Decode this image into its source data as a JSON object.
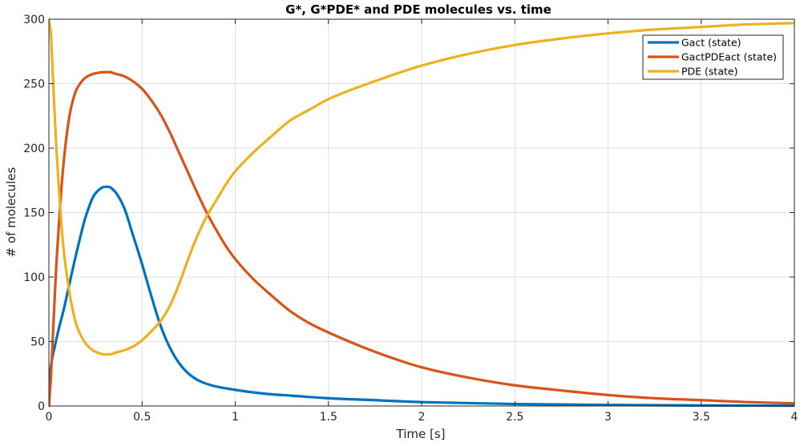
{
  "chart_data": {
    "type": "line",
    "title": "G*, G*PDE* and PDE molecules vs. time",
    "xlabel": "Time [s]",
    "ylabel": "# of molecules",
    "xlim": [
      0,
      4
    ],
    "ylim": [
      0,
      300
    ],
    "xticks": [
      0,
      0.5,
      1,
      1.5,
      2,
      2.5,
      3,
      3.5,
      4
    ],
    "xtick_labels": [
      "0",
      "0.5",
      "1",
      "1.5",
      "2",
      "2.5",
      "3",
      "3.5",
      "4"
    ],
    "yticks": [
      0,
      50,
      100,
      150,
      200,
      250,
      300
    ],
    "ytick_labels": [
      "0",
      "50",
      "100",
      "150",
      "200",
      "250",
      "300"
    ],
    "grid": true,
    "legend_position": "top-right",
    "series": [
      {
        "name": "Gact (state)",
        "color": "#0072BD",
        "x": [
          0,
          0.01,
          0.03,
          0.05,
          0.08,
          0.1,
          0.15,
          0.2,
          0.25,
          0.3,
          0.32,
          0.35,
          0.4,
          0.45,
          0.5,
          0.55,
          0.6,
          0.65,
          0.7,
          0.75,
          0.8,
          0.85,
          0.9,
          1,
          1.1,
          1.2,
          1.3,
          1.5,
          1.75,
          2,
          2.5,
          3,
          3.5,
          4
        ],
        "y": [
          0,
          30,
          45,
          58,
          75,
          88,
          120,
          148,
          165,
          170,
          170,
          167,
          155,
          133,
          110,
          85,
          62,
          45,
          33,
          25,
          20,
          17,
          15,
          12.5,
          10.5,
          9,
          8,
          6,
          4.5,
          3,
          1.5,
          0.8,
          0.4,
          0.2
        ]
      },
      {
        "name": "GactPDEact (state)",
        "color": "#D95319",
        "x": [
          0,
          0.01,
          0.02,
          0.04,
          0.06,
          0.08,
          0.1,
          0.12,
          0.15,
          0.2,
          0.25,
          0.3,
          0.33,
          0.35,
          0.4,
          0.45,
          0.5,
          0.55,
          0.6,
          0.65,
          0.7,
          0.75,
          0.8,
          0.85,
          0.9,
          0.95,
          1,
          1.1,
          1.2,
          1.3,
          1.4,
          1.5,
          1.75,
          2,
          2.25,
          2.5,
          2.75,
          3,
          3.25,
          3.5,
          3.75,
          4
        ],
        "y": [
          0,
          20,
          50,
          110,
          155,
          190,
          215,
          232,
          246,
          255,
          258,
          259,
          259,
          258,
          256,
          252,
          246,
          237,
          226,
          212,
          196,
          180,
          164,
          149,
          136,
          124,
          114,
          98,
          85,
          73,
          64,
          57,
          42,
          30,
          22,
          16,
          12,
          8.5,
          6,
          4.5,
          3,
          2
        ]
      },
      {
        "name": "PDE (state)",
        "color": "#EDB120",
        "x": [
          0,
          0.01,
          0.02,
          0.04,
          0.06,
          0.08,
          0.1,
          0.12,
          0.15,
          0.2,
          0.25,
          0.3,
          0.33,
          0.35,
          0.4,
          0.45,
          0.5,
          0.55,
          0.6,
          0.65,
          0.7,
          0.75,
          0.8,
          0.85,
          0.9,
          0.95,
          1,
          1.1,
          1.2,
          1.3,
          1.4,
          1.5,
          1.75,
          2,
          2.25,
          2.5,
          2.75,
          3,
          3.25,
          3.5,
          3.75,
          4
        ],
        "y": [
          300,
          290,
          260,
          200,
          155,
          120,
          98,
          80,
          62,
          48,
          42,
          40,
          40,
          41,
          43,
          46,
          51,
          58,
          66,
          78,
          95,
          115,
          133,
          148,
          160,
          172,
          182,
          197,
          210,
          222,
          230,
          238,
          252,
          264,
          273,
          280,
          285,
          289,
          292,
          294,
          296,
          297
        ]
      }
    ]
  }
}
